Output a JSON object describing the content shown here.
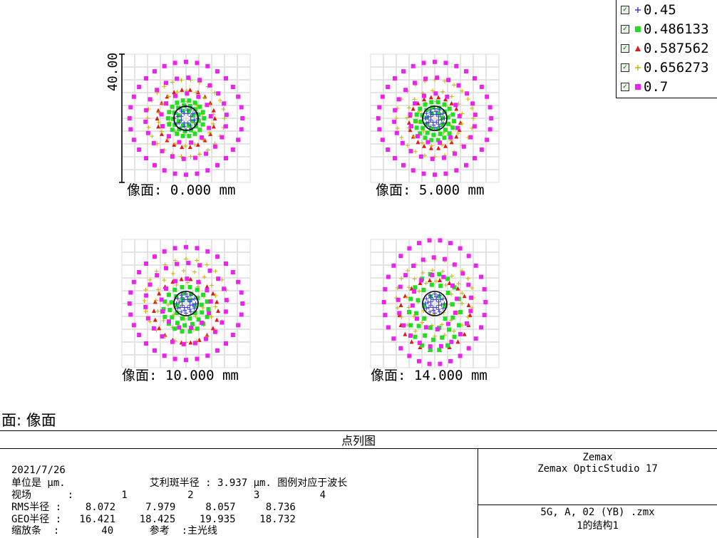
{
  "window_title": "",
  "surface_title": "面: 像面",
  "chart_data": {
    "type": "scatter",
    "title": "点列图",
    "scale_bar_label": "40.00",
    "grid": true,
    "legend_placement": "top-right",
    "series": [
      {
        "name": "0.45",
        "marker": "plus",
        "color": "#3a3ad8"
      },
      {
        "name": "0.486133",
        "marker": "square",
        "color": "#22dd22"
      },
      {
        "name": "0.587562",
        "marker": "triangle",
        "color": "#e01818"
      },
      {
        "name": "0.656273",
        "marker": "plus",
        "color": "#c8b400"
      },
      {
        "name": "0.7",
        "marker": "square",
        "color": "#ee22ee"
      }
    ],
    "fields": [
      {
        "label": "像面: 0.000 mm",
        "field_mm": 0.0,
        "rms_radius": 8.072,
        "geo_radius": 16.421
      },
      {
        "label": "像面: 5.000 mm",
        "field_mm": 5.0,
        "rms_radius": 7.979,
        "geo_radius": 18.425
      },
      {
        "label": "像面: 10.000 mm",
        "field_mm": 10.0,
        "rms_radius": 8.057,
        "geo_radius": 19.935
      },
      {
        "label": "像面: 14.000 mm",
        "field_mm": 14.0,
        "rms_radius": 8.736,
        "geo_radius": 18.732
      }
    ],
    "airy_radius_um": 3.937
  },
  "legend": {
    "items": [
      {
        "label": "0.45"
      },
      {
        "label": "0.486133"
      },
      {
        "label": "0.587562"
      },
      {
        "label": "0.656273"
      },
      {
        "label": "0.7"
      }
    ]
  },
  "info": {
    "title": "点列图",
    "date": "2021/7/26",
    "line_units": "单位是 µm.              艾利斑半径 : 3.937 µm. 图例对应于波长",
    "line_fields": "视场      :        1          2          3          4",
    "line_rms": "RMS半径 :    8.072     7.979     8.057     8.736",
    "line_geo": "GEO半径 :   16.421    18.425    19.935    18.732",
    "line_scale": "缩放条  :       40      参考  :主光线",
    "company": "Zemax",
    "product": "Zemax OpticStudio 17",
    "file": "5G, A, 02 (YB) .zmx",
    "config": "1的结构1"
  }
}
